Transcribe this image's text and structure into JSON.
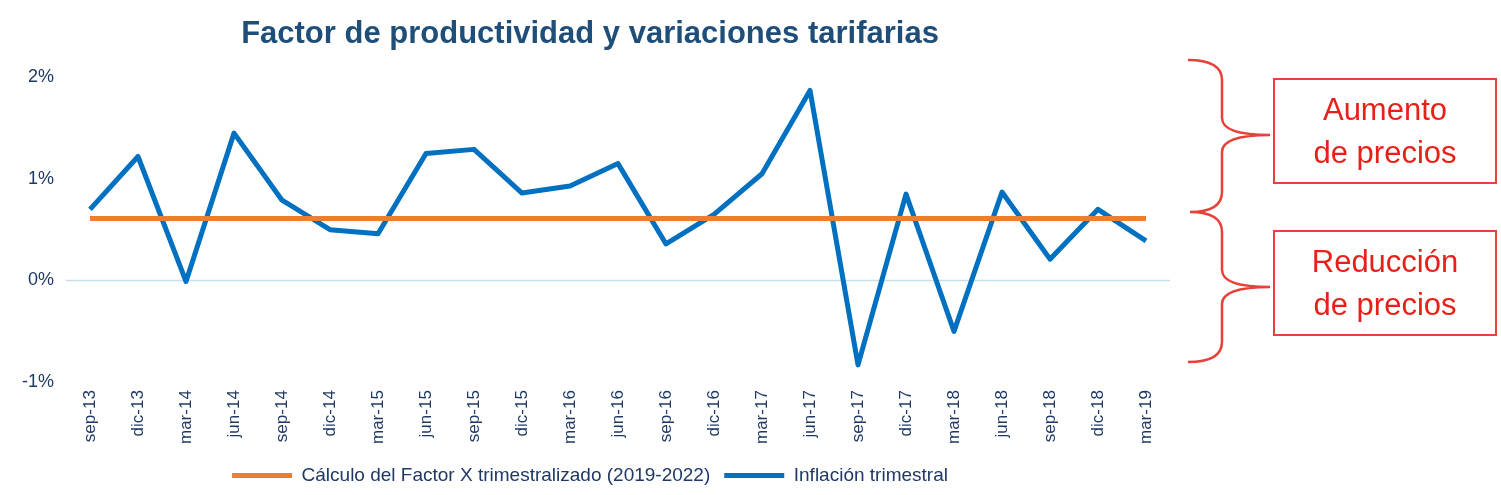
{
  "chart_data": {
    "type": "line",
    "title": "Factor de productividad y variaciones tarifarias",
    "categories": [
      "sep-13",
      "dic-13",
      "mar-14",
      "jun-14",
      "sep-14",
      "dic-14",
      "mar-15",
      "jun-15",
      "sep-15",
      "dic-15",
      "mar-16",
      "jun-16",
      "sep-16",
      "dic-16",
      "mar-17",
      "jun-17",
      "sep-17",
      "dic-17",
      "mar-18",
      "jun-18",
      "sep-18",
      "dic-18",
      "mar-19"
    ],
    "series": [
      {
        "name": "Cálculo del Factor X trimestralizado (2019-2022)",
        "color": "#ed7d31",
        "values": [
          0.61,
          0.61,
          0.61,
          0.61,
          0.61,
          0.61,
          0.61,
          0.61,
          0.61,
          0.61,
          0.61,
          0.61,
          0.61,
          0.61,
          0.61,
          0.61,
          0.61,
          0.61,
          0.61,
          0.61,
          0.61,
          0.61,
          0.61
        ]
      },
      {
        "name": "Inflación trimestral",
        "color": "#0070c0",
        "values": [
          0.7,
          1.22,
          -0.01,
          1.45,
          0.79,
          0.5,
          0.46,
          1.25,
          1.29,
          0.86,
          0.93,
          1.15,
          0.36,
          0.65,
          1.05,
          1.87,
          -0.83,
          0.85,
          -0.5,
          0.87,
          0.21,
          0.7,
          0.39
        ]
      }
    ],
    "ylim": [
      -1,
      2
    ],
    "yticks": [
      {
        "value": 2,
        "label": "2%"
      },
      {
        "value": 1,
        "label": "1%"
      },
      {
        "value": 0,
        "label": "0%"
      },
      {
        "value": -1,
        "label": "-1%"
      }
    ],
    "ref_lines": [
      {
        "axis": "y",
        "value": 0,
        "color": "#c5dff0"
      }
    ],
    "grid": false,
    "legend": "bottom",
    "marker": "none",
    "line_style": "solid",
    "annotations": [
      "Aumento de precios",
      "Reducción de precios"
    ]
  }
}
